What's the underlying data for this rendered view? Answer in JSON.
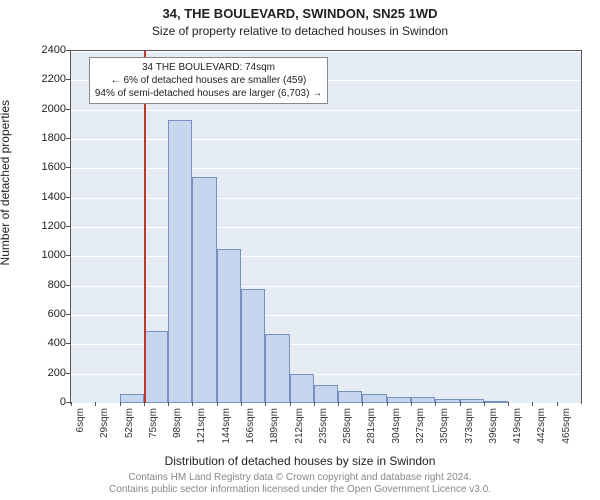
{
  "header": {
    "title": "34, THE BOULEVARD, SWINDON, SN25 1WD",
    "subtitle": "Size of property relative to detached houses in Swindon"
  },
  "chart": {
    "type": "histogram",
    "ylabel": "Number of detached properties",
    "xlabel": "Distribution of detached houses by size in Swindon",
    "ylim": [
      0,
      2400
    ],
    "ytick_step": 200,
    "yticks": [
      0,
      200,
      400,
      600,
      800,
      1000,
      1200,
      1400,
      1600,
      1800,
      2000,
      2200,
      2400
    ],
    "xticks": [
      "6sqm",
      "29sqm",
      "52sqm",
      "75sqm",
      "98sqm",
      "121sqm",
      "144sqm",
      "166sqm",
      "189sqm",
      "212sqm",
      "235sqm",
      "258sqm",
      "281sqm",
      "304sqm",
      "327sqm",
      "350sqm",
      "373sqm",
      "396sqm",
      "419sqm",
      "442sqm",
      "465sqm"
    ],
    "bars": [
      0,
      0,
      60,
      490,
      1930,
      1540,
      1050,
      780,
      470,
      200,
      120,
      80,
      60,
      40,
      40,
      30,
      30,
      10,
      0,
      0,
      0
    ],
    "bar_color": "#c6d6ee",
    "bar_border": "#7690bf",
    "plot_bg": "#e6ecf3",
    "grid_color": "#ffffff",
    "marker_line": {
      "bin_index": 3,
      "color": "#c0392b"
    },
    "annotation": {
      "lines": [
        "34 THE BOULEVARD: 74sqm",
        "← 6% of detached houses are smaller (459)",
        "94% of semi-detached houses are larger (6,703) →"
      ]
    }
  },
  "footer": {
    "line1": "Contains HM Land Registry data © Crown copyright and database right 2024.",
    "line2": "Contains public sector information licensed under the Open Government Licence v3.0."
  }
}
